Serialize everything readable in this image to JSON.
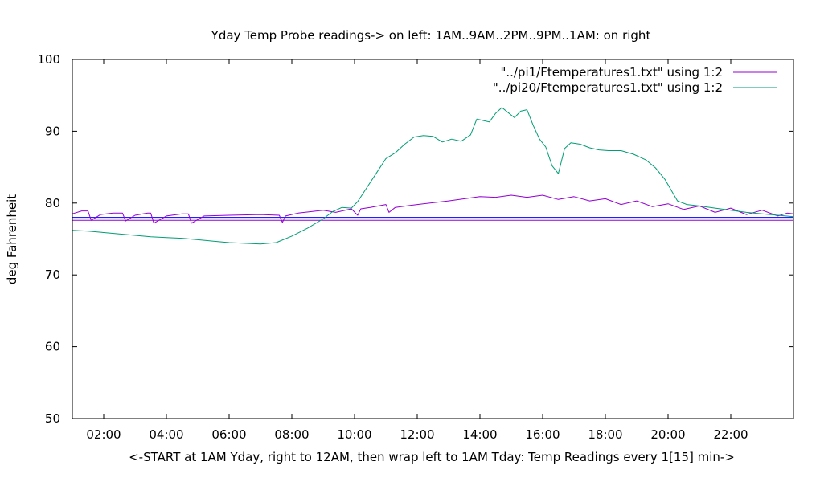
{
  "chart_data": {
    "type": "line",
    "title": "Yday Temp Probe readings-> on left: 1AM..9AM..2PM..9PM..1AM: on right",
    "xlabel": "<-START at 1AM Yday, right to 12AM, then wrap left to 1AM Tday: Temp Readings every 1[15] min->",
    "ylabel": "deg Fahrenheit",
    "xlim": [
      1.0,
      24.0
    ],
    "ylim": [
      50,
      100
    ],
    "yticks": [
      50,
      60,
      70,
      80,
      90,
      100
    ],
    "xticks": [
      2,
      4,
      6,
      8,
      10,
      12,
      14,
      16,
      18,
      20,
      22
    ],
    "xtick_labels": [
      "02:00",
      "04:00",
      "06:00",
      "08:00",
      "10:00",
      "12:00",
      "14:00",
      "16:00",
      "18:00",
      "20:00",
      "22:00"
    ],
    "grid": false,
    "legend_position": "top-right",
    "series": [
      {
        "name": "\"../pi1/Ftemperatures1.txt\" using 1:2",
        "color": "#9400d3",
        "x": [
          1.0,
          1.3,
          1.5,
          1.6,
          1.9,
          2.3,
          2.6,
          2.7,
          3.0,
          3.4,
          3.5,
          3.6,
          4.0,
          4.5,
          4.7,
          4.8,
          5.2,
          6.0,
          7.0,
          7.6,
          7.7,
          7.8,
          8.2,
          8.6,
          9.0,
          9.4,
          9.9,
          10.1,
          10.2,
          10.5,
          11.0,
          11.1,
          11.3,
          12.0,
          13.0,
          14.0,
          14.5,
          15.0,
          15.5,
          16.0,
          16.5,
          17.0,
          17.5,
          18.0,
          18.5,
          19.0,
          19.5,
          20.0,
          20.5,
          21.0,
          21.5,
          22.0,
          22.5,
          23.0,
          23.5,
          23.8,
          24.0
        ],
        "y": [
          78.5,
          78.9,
          78.9,
          77.6,
          78.4,
          78.6,
          78.6,
          77.5,
          78.3,
          78.6,
          78.6,
          77.2,
          78.2,
          78.5,
          78.5,
          77.2,
          78.2,
          78.3,
          78.4,
          78.3,
          77.3,
          78.2,
          78.6,
          78.8,
          79.0,
          78.7,
          79.2,
          78.3,
          79.2,
          79.4,
          79.8,
          78.7,
          79.4,
          79.8,
          80.3,
          80.9,
          80.8,
          81.1,
          80.8,
          81.1,
          80.5,
          80.9,
          80.3,
          80.6,
          79.8,
          80.3,
          79.5,
          79.9,
          79.1,
          79.6,
          78.7,
          79.3,
          78.4,
          79.0,
          78.2,
          78.6,
          78.5
        ]
      },
      {
        "name": "\"../pi20/Ftemperatures1.txt\" using 1:2",
        "color": "#009e73",
        "x": [
          1.0,
          1.5,
          2.0,
          2.5,
          3.0,
          3.5,
          4.0,
          4.5,
          5.0,
          5.5,
          6.0,
          6.5,
          7.0,
          7.5,
          8.0,
          8.5,
          9.0,
          9.3,
          9.6,
          9.9,
          10.1,
          10.4,
          10.7,
          11.0,
          11.3,
          11.6,
          11.9,
          12.2,
          12.5,
          12.8,
          13.1,
          13.4,
          13.7,
          13.9,
          14.1,
          14.3,
          14.5,
          14.7,
          14.9,
          15.1,
          15.3,
          15.5,
          15.7,
          15.9,
          16.1,
          16.3,
          16.5,
          16.7,
          16.9,
          17.2,
          17.5,
          17.8,
          18.1,
          18.5,
          18.9,
          19.3,
          19.6,
          19.9,
          20.1,
          20.3,
          20.6,
          21.0,
          21.5,
          22.0,
          22.5,
          23.0,
          23.5,
          24.0
        ],
        "y": [
          76.2,
          76.1,
          75.9,
          75.7,
          75.5,
          75.3,
          75.2,
          75.1,
          74.9,
          74.7,
          74.5,
          74.4,
          74.3,
          74.5,
          75.4,
          76.5,
          77.8,
          78.8,
          79.4,
          79.3,
          80.2,
          82.2,
          84.2,
          86.2,
          87.0,
          88.2,
          89.2,
          89.4,
          89.3,
          88.5,
          88.9,
          88.6,
          89.5,
          91.7,
          91.5,
          91.3,
          92.5,
          93.3,
          92.6,
          91.9,
          92.8,
          93.0,
          90.8,
          88.9,
          87.8,
          85.2,
          84.1,
          87.6,
          88.4,
          88.2,
          87.7,
          87.4,
          87.3,
          87.3,
          86.8,
          86.0,
          84.9,
          83.3,
          81.8,
          80.3,
          79.8,
          79.6,
          79.3,
          79.0,
          78.7,
          78.5,
          78.3,
          78.1
        ]
      }
    ],
    "reference_lines": [
      {
        "y": 77.6,
        "color": "#9400d3"
      },
      {
        "y": 78.0,
        "color": "#0000ff"
      }
    ]
  }
}
